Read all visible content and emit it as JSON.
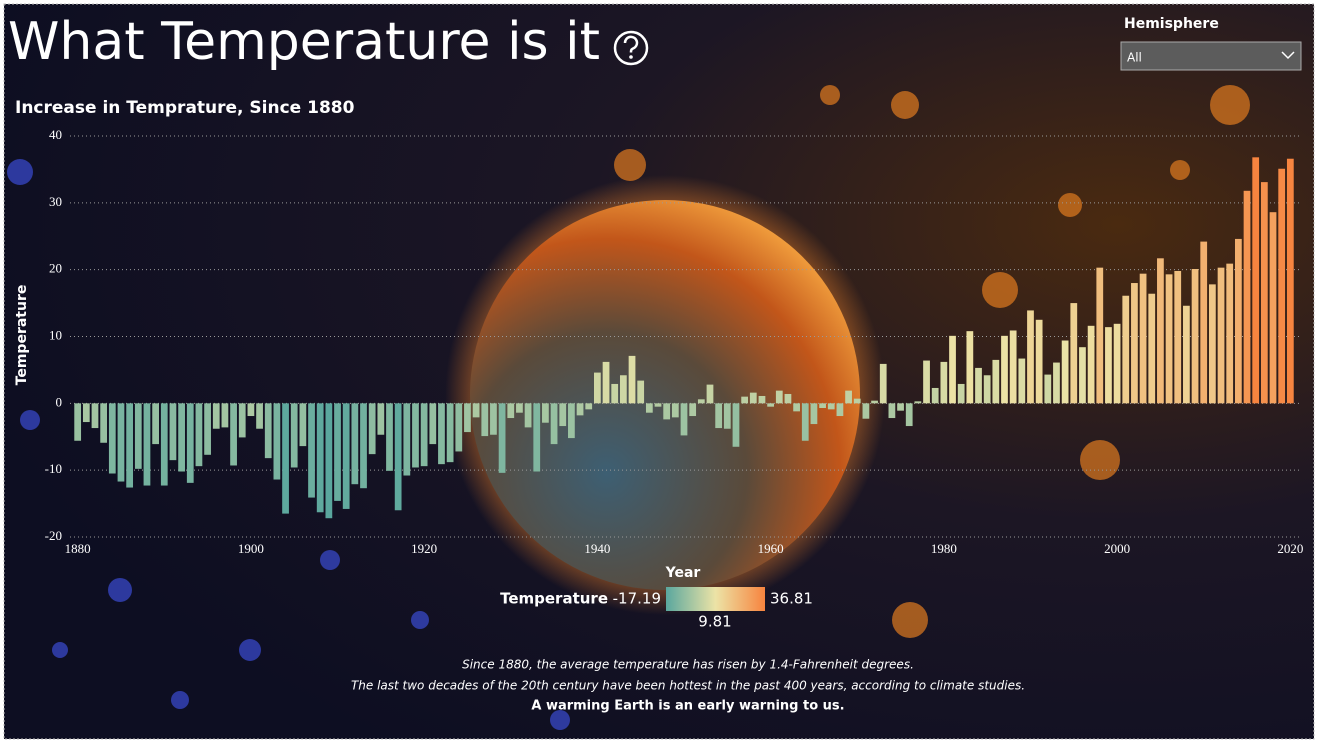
{
  "header": {
    "title": "What Temperature is it"
  },
  "slicer": {
    "label": "Hemisphere",
    "selected": "All"
  },
  "chart_data": {
    "type": "bar",
    "title": "Increase in Temprature, Since 1880",
    "x_label": "Year",
    "y_label": "Temperature",
    "x": [
      1880,
      1881,
      1882,
      1883,
      1884,
      1885,
      1886,
      1887,
      1888,
      1889,
      1890,
      1891,
      1892,
      1893,
      1894,
      1895,
      1896,
      1897,
      1898,
      1899,
      1900,
      1901,
      1902,
      1903,
      1904,
      1905,
      1906,
      1907,
      1908,
      1909,
      1910,
      1911,
      1912,
      1913,
      1914,
      1915,
      1916,
      1917,
      1918,
      1919,
      1920,
      1921,
      1922,
      1923,
      1924,
      1925,
      1926,
      1927,
      1928,
      1929,
      1930,
      1931,
      1932,
      1933,
      1934,
      1935,
      1936,
      1937,
      1938,
      1939,
      1940,
      1941,
      1942,
      1943,
      1944,
      1945,
      1946,
      1947,
      1948,
      1949,
      1950,
      1951,
      1952,
      1953,
      1954,
      1955,
      1956,
      1957,
      1958,
      1959,
      1960,
      1961,
      1962,
      1963,
      1964,
      1965,
      1966,
      1967,
      1968,
      1969,
      1970,
      1971,
      1972,
      1973,
      1974,
      1975,
      1976,
      1977,
      1978,
      1979,
      1980,
      1981,
      1982,
      1983,
      1984,
      1985,
      1986,
      1987,
      1988,
      1989,
      1990,
      1991,
      1992,
      1993,
      1994,
      1995,
      1996,
      1997,
      1998,
      1999,
      2000,
      2001,
      2002,
      2003,
      2004,
      2005,
      2006,
      2007,
      2008,
      2009,
      2010,
      2011,
      2012,
      2013,
      2014,
      2015,
      2016,
      2017,
      2018,
      2019,
      2020
    ],
    "values": [
      -5.6,
      -2.8,
      -3.7,
      -5.9,
      -10.5,
      -11.7,
      -12.6,
      -9.8,
      -12.3,
      -6.1,
      -12.3,
      -8.5,
      -10.2,
      -11.9,
      -9.4,
      -7.7,
      -3.8,
      -3.6,
      -9.3,
      -5.1,
      -1.9,
      -3.8,
      -8.2,
      -11.4,
      -16.5,
      -9.6,
      -6.4,
      -14.1,
      -16.3,
      -17.19,
      -14.6,
      -15.8,
      -12.1,
      -12.7,
      -7.6,
      -4.7,
      -10.1,
      -16.0,
      -10.8,
      -9.6,
      -9.4,
      -6.1,
      -9.1,
      -8.8,
      -7.2,
      -4.3,
      -2.1,
      -4.9,
      -4.7,
      -10.4,
      -2.2,
      -1.4,
      -3.6,
      -10.2,
      -2.9,
      -6.1,
      -3.4,
      -5.2,
      -1.8,
      -0.9,
      4.6,
      6.2,
      2.9,
      4.2,
      7.1,
      3.4,
      -1.4,
      -0.5,
      -2.4,
      -2.1,
      -4.8,
      -1.9,
      0.6,
      2.8,
      -3.7,
      -3.8,
      -6.5,
      1.0,
      1.6,
      1.1,
      -0.5,
      1.9,
      1.4,
      -1.2,
      -5.6,
      -3.1,
      -0.7,
      -0.9,
      -1.9,
      1.9,
      0.7,
      -2.3,
      0.4,
      5.9,
      -2.2,
      -1.1,
      -3.4,
      0.3,
      6.4,
      2.3,
      6.2,
      10.1,
      2.9,
      10.8,
      5.3,
      4.2,
      6.5,
      10.1,
      10.9,
      6.7,
      13.9,
      12.5,
      4.3,
      6.1,
      9.4,
      15.0,
      8.4,
      11.6,
      20.3,
      11.4,
      11.9,
      16.1,
      18.0,
      19.4,
      16.4,
      21.7,
      19.3,
      19.8,
      14.6,
      20.1,
      24.2,
      17.8,
      20.3,
      20.9,
      24.6,
      31.8,
      36.81,
      33.1,
      28.6,
      35.1,
      36.6
    ],
    "xlim": [
      1879,
      2021
    ],
    "xticks": [
      1880,
      1900,
      1920,
      1940,
      1960,
      1980,
      2000,
      2020
    ],
    "ylim": [
      -20,
      40
    ],
    "yticks": [
      -20,
      -10,
      0,
      10,
      20,
      30,
      40
    ],
    "grid": true,
    "legend": {
      "title": "Temperature",
      "min": -17.19,
      "mid": 9.81,
      "max": 36.81,
      "colors": [
        "#5aa79e",
        "#ece3a6",
        "#f7843f"
      ]
    }
  },
  "footer": {
    "lines": [
      "Since 1880, the average temperature has risen by 1.4-Fahrenheit degrees.",
      "The last two decades of the 20th century have been hottest in the past 400 years, according to climate studies."
    ],
    "emphasis": "A warming Earth is an early warning to us."
  }
}
